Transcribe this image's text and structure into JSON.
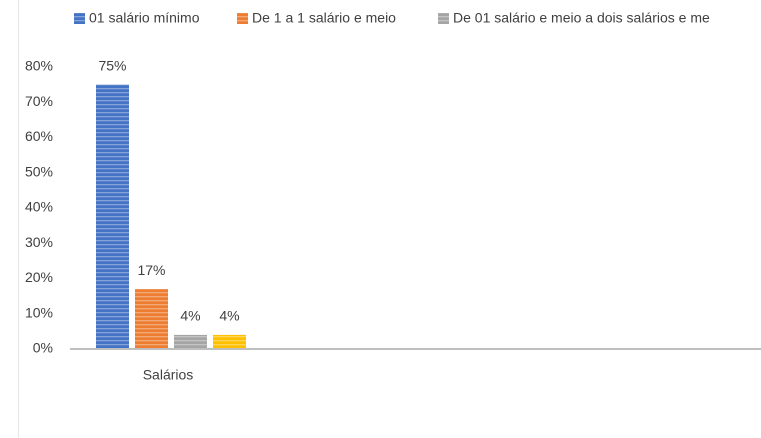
{
  "chart_data": {
    "type": "bar",
    "categories": [
      "Salários"
    ],
    "series": [
      {
        "name": "01 salário mínimo",
        "color": "#4472c4",
        "values": [
          75
        ],
        "value_labels": [
          "75%"
        ]
      },
      {
        "name": "De 1 a 1 salário e meio",
        "color": "#ed7d31",
        "values": [
          17
        ],
        "value_labels": [
          "17%"
        ]
      },
      {
        "name": "De 01 salário e meio a dois salários e me",
        "color": "#a5a5a5",
        "values": [
          4
        ],
        "value_labels": [
          "4%"
        ]
      },
      {
        "color": "#ffc000",
        "values": [
          4
        ],
        "value_labels": [
          "4%"
        ]
      }
    ],
    "ylim": [
      0,
      80
    ],
    "yticks": [
      {
        "value": 0,
        "label": "0%"
      },
      {
        "value": 10,
        "label": "10%"
      },
      {
        "value": 20,
        "label": "20%"
      },
      {
        "value": 30,
        "label": "30%"
      },
      {
        "value": 40,
        "label": "40%"
      },
      {
        "value": 50,
        "label": "50%"
      },
      {
        "value": 60,
        "label": "60%"
      },
      {
        "value": 70,
        "label": "70%"
      },
      {
        "value": 80,
        "label": "80%"
      }
    ],
    "grid": false,
    "legend": "top"
  }
}
